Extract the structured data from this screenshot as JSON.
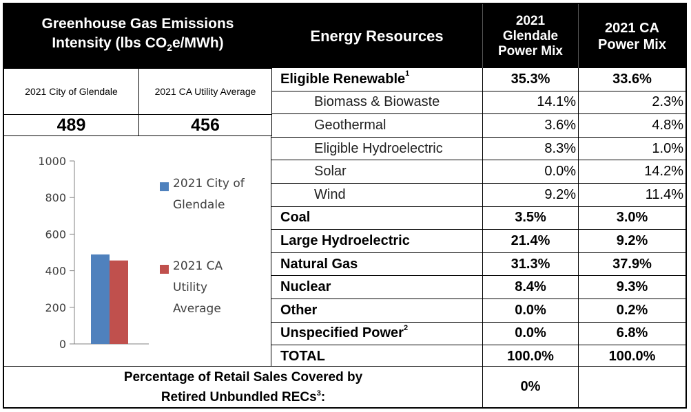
{
  "header": {
    "ghg_line1": "Greenhouse Gas Emissions",
    "ghg_line2_pre": "Intensity (lbs CO",
    "ghg_sub": "2",
    "ghg_line2_post": "e/MWh)",
    "resources": "Energy Resources",
    "glendale_l1": "2021",
    "glendale_l2": "Glendale",
    "glendale_l3": "Power Mix",
    "ca_l1": "2021 CA",
    "ca_l2": "Power Mix"
  },
  "ghg": {
    "glendale_label": "2021 City of Glendale",
    "ca_label": "2021 CA Utility Average",
    "glendale_value": "489",
    "ca_value": "456"
  },
  "chart_data": {
    "type": "bar",
    "categories": [
      ""
    ],
    "series": [
      {
        "name": "2021 City of Glendale",
        "values": [
          489
        ],
        "color": "#4f81bd"
      },
      {
        "name": "2021 CA Utility Average",
        "values": [
          456
        ],
        "color": "#c0504d"
      }
    ],
    "ylim": [
      0,
      1000
    ],
    "yticks": [
      "0",
      "200",
      "400",
      "600",
      "800",
      "1000"
    ],
    "legend_placement": "right",
    "legend_lines": [
      [
        "2021 City of",
        "Glendale"
      ],
      [
        "2021 CA",
        "Utility",
        "Average"
      ]
    ]
  },
  "resources": [
    {
      "name": "Eligible Renewable",
      "sup": "1",
      "glendale": "35.3%",
      "ca": "33.6%",
      "level": "main"
    },
    {
      "name": "Biomass & Biowaste",
      "sup": "",
      "glendale": "14.1%",
      "ca": "2.3%",
      "level": "sub"
    },
    {
      "name": "Geothermal",
      "sup": "",
      "glendale": "3.6%",
      "ca": "4.8%",
      "level": "sub"
    },
    {
      "name": "Eligible Hydroelectric",
      "sup": "",
      "glendale": "8.3%",
      "ca": "1.0%",
      "level": "sub"
    },
    {
      "name": "Solar",
      "sup": "",
      "glendale": "0.0%",
      "ca": "14.2%",
      "level": "sub"
    },
    {
      "name": "Wind",
      "sup": "",
      "glendale": "9.2%",
      "ca": "11.4%",
      "level": "sub"
    },
    {
      "name": "Coal",
      "sup": "",
      "glendale": "3.5%",
      "ca": "3.0%",
      "level": "main"
    },
    {
      "name": "Large Hydroelectric",
      "sup": "",
      "glendale": "21.4%",
      "ca": "9.2%",
      "level": "main"
    },
    {
      "name": "Natural Gas",
      "sup": "",
      "glendale": "31.3%",
      "ca": "37.9%",
      "level": "main"
    },
    {
      "name": "Nuclear",
      "sup": "",
      "glendale": "8.4%",
      "ca": "9.3%",
      "level": "main"
    },
    {
      "name": "Other",
      "sup": "",
      "glendale": "0.0%",
      "ca": "0.2%",
      "level": "main"
    },
    {
      "name": "Unspecified Power",
      "sup": "2",
      "glendale": "0.0%",
      "ca": "6.8%",
      "level": "main"
    },
    {
      "name": "TOTAL",
      "sup": "",
      "glendale": "100.0%",
      "ca": "100.0%",
      "level": "main"
    }
  ],
  "footer": {
    "line1": "Percentage of Retail Sales Covered by",
    "line2": "Retired Unbundled RECs",
    "sup": "3",
    "line2_end": ":",
    "glendale": "0%",
    "ca": ""
  }
}
